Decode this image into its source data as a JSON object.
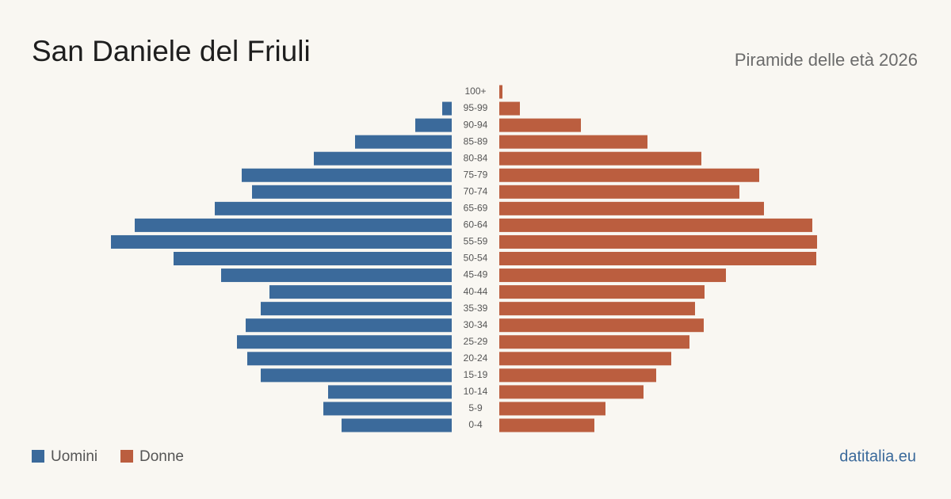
{
  "chart_data": {
    "type": "pyramid",
    "title": "San Daniele del Friuli",
    "subtitle": "Piramide delle età 2026",
    "source": "datitalia.eu",
    "categories": [
      "100+",
      "95-99",
      "90-94",
      "85-89",
      "80-84",
      "75-79",
      "70-74",
      "65-69",
      "60-64",
      "55-59",
      "50-54",
      "45-49",
      "40-44",
      "35-39",
      "30-34",
      "25-29",
      "20-24",
      "15-19",
      "10-14",
      "5-9",
      "0-4"
    ],
    "series": [
      {
        "name": "Uomini",
        "color": "#3b6a9b",
        "values": [
          0,
          12,
          46,
          122,
          174,
          265,
          252,
          299,
          400,
          430,
          351,
          291,
          230,
          241,
          260,
          271,
          258,
          241,
          156,
          162,
          139
        ]
      },
      {
        "name": "Donne",
        "color": "#bb5e3f",
        "values": [
          4,
          26,
          103,
          187,
          255,
          328,
          303,
          334,
          395,
          401,
          400,
          286,
          259,
          247,
          258,
          240,
          217,
          198,
          182,
          134,
          120
        ]
      }
    ]
  }
}
